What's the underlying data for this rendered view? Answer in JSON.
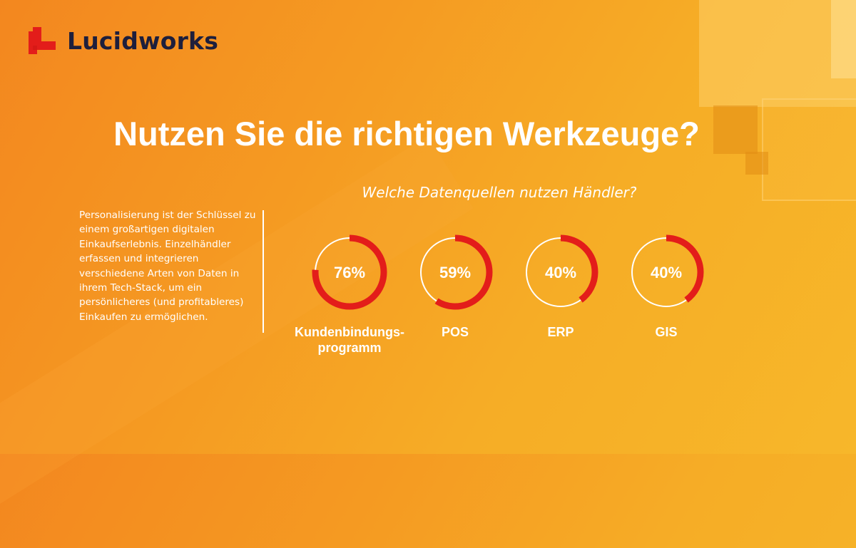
{
  "brand": {
    "name": "Lucidworks",
    "logo_icon": "lucidworks-logo-icon",
    "color": "#e31d1a"
  },
  "headline": "Nutzen Sie die richtigen Werkzeuge?",
  "intro": "Personalisierung ist der Schlüssel zu einem großartigen digitalen Einkaufserlebnis. Einzelhändler erfassen und integrieren verschiedene Arten von Daten in ihrem Tech-Stack, um ein persönlicheres (und profitableres) Einkaufen zu ermöglichen.",
  "colors": {
    "ring_fill": "#e31d1a",
    "ring_track": "#ffffff",
    "text": "#ffffff",
    "logo_text": "#1e1f3c"
  },
  "chart_data": {
    "type": "pie",
    "title": "Welche Datenquellen nutzen Händler?",
    "unit": "%",
    "categories": [
      "Kundenbindungs-programm",
      "POS",
      "ERP",
      "GIS"
    ],
    "values": [
      76,
      59,
      40,
      40
    ],
    "value_labels": [
      "76%",
      "59%",
      "40%",
      "40%"
    ],
    "label_lines": [
      [
        "Kundenbindungs-",
        "programm"
      ],
      [
        "POS"
      ],
      [
        "ERP"
      ],
      [
        "GIS"
      ]
    ]
  }
}
